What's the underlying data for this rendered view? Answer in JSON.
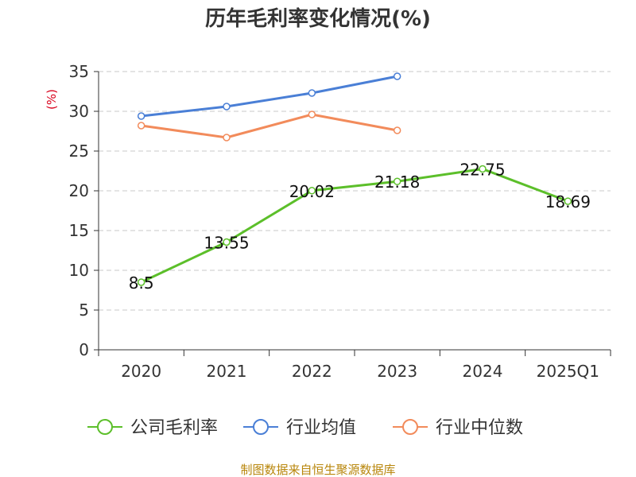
{
  "chart_data": {
    "type": "line",
    "title": "历年毛利率变化情况(%)",
    "ylabel": "(%)",
    "xlabel": "",
    "categories": [
      "2020",
      "2021",
      "2022",
      "2023",
      "2024",
      "2025Q1"
    ],
    "ylim": [
      0,
      35
    ],
    "yticks": [
      0,
      5,
      10,
      15,
      20,
      25,
      30,
      35
    ],
    "grid": true,
    "legend_position": "bottom",
    "series": [
      {
        "name": "公司毛利率",
        "color": "#5cbf2a",
        "values": [
          8.5,
          13.55,
          20.02,
          21.18,
          22.75,
          18.69
        ],
        "labels": [
          "8.5",
          "13.55",
          "20.02",
          "21.18",
          "22.75",
          "18.69"
        ],
        "show_labels": true
      },
      {
        "name": "行业均值",
        "color": "#4a7fd6",
        "values": [
          29.4,
          30.6,
          32.3,
          34.4,
          null,
          null
        ],
        "show_labels": false
      },
      {
        "name": "行业中位数",
        "color": "#f28b5b",
        "values": [
          28.2,
          26.7,
          29.6,
          27.6,
          null,
          null
        ],
        "show_labels": false
      }
    ],
    "source": "制图数据来自恒生聚源数据库"
  }
}
